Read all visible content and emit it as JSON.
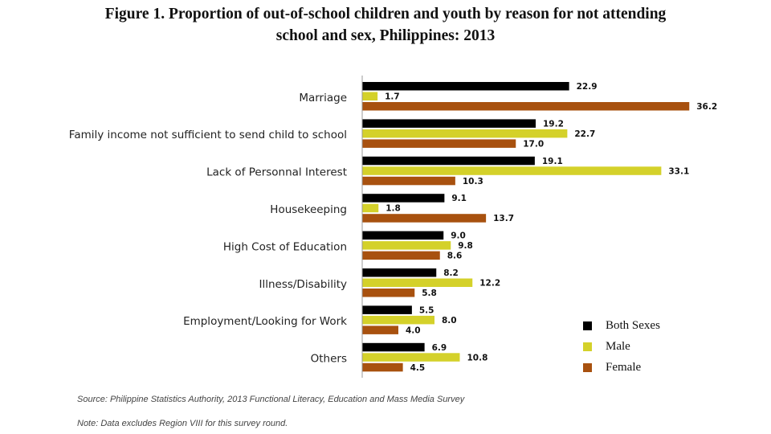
{
  "chart_data": {
    "type": "bar",
    "orientation": "horizontal",
    "title_line1": "Figure 1. Proportion of out-of-school children and youth by reason for not attending",
    "title_line2": "school and sex, Philippines: 2013",
    "categories": [
      "Marriage",
      "Family income not sufficient to send child to school",
      "Lack of Personnal Interest",
      "Housekeeping",
      "High Cost of Education",
      "Illness/Disability",
      "Employment/Looking for Work",
      "Others"
    ],
    "series": [
      {
        "name": "Both Sexes",
        "color": "#000000",
        "values": [
          22.9,
          19.2,
          19.1,
          9.1,
          9.0,
          8.2,
          5.5,
          6.9
        ]
      },
      {
        "name": "Male",
        "color": "#d4d12a",
        "values": [
          1.7,
          22.7,
          33.1,
          1.8,
          9.8,
          12.2,
          8.0,
          10.8
        ]
      },
      {
        "name": "Female",
        "color": "#a8510f",
        "values": [
          36.2,
          17.0,
          10.3,
          13.7,
          8.6,
          5.8,
          4.0,
          4.5
        ]
      }
    ],
    "xlim": [
      0,
      40
    ],
    "grid": false,
    "legend_position": "bottom-right",
    "source": "Source: Philippine Statistics Authority, 2013 Functional Literacy, Education and Mass Media Survey",
    "note": "Note: Data excludes Region VIII for this survey round."
  }
}
